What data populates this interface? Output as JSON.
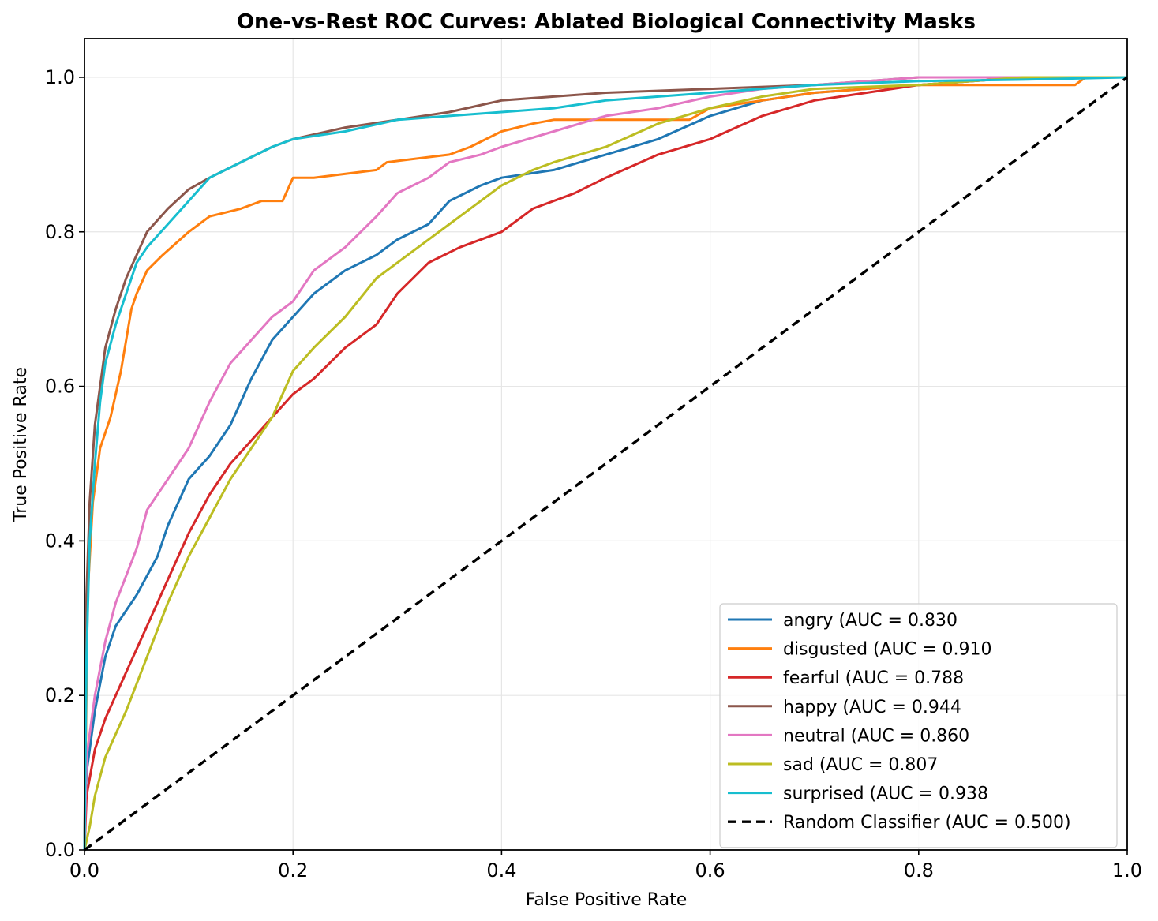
{
  "chart_data": {
    "type": "line",
    "title": "One-vs-Rest ROC Curves: Ablated Biological Connectivity Masks",
    "xlabel": "False Positive Rate",
    "ylabel": "True Positive Rate",
    "xlim": [
      0.0,
      1.0
    ],
    "ylim": [
      0.0,
      1.05
    ],
    "xticks": [
      "0.0",
      "0.2",
      "0.4",
      "0.6",
      "0.8",
      "1.0"
    ],
    "yticks": [
      "0.0",
      "0.2",
      "0.4",
      "0.6",
      "0.8",
      "1.0"
    ],
    "grid": true,
    "legend_position": "lower-right",
    "series": [
      {
        "name": "angry (AUC = 0.830",
        "color": "#1f77b4",
        "points": [
          [
            0,
            0
          ],
          [
            0.002,
            0.1
          ],
          [
            0.01,
            0.18
          ],
          [
            0.02,
            0.25
          ],
          [
            0.03,
            0.29
          ],
          [
            0.05,
            0.33
          ],
          [
            0.07,
            0.38
          ],
          [
            0.08,
            0.42
          ],
          [
            0.1,
            0.48
          ],
          [
            0.12,
            0.51
          ],
          [
            0.14,
            0.55
          ],
          [
            0.16,
            0.61
          ],
          [
            0.18,
            0.66
          ],
          [
            0.2,
            0.69
          ],
          [
            0.22,
            0.72
          ],
          [
            0.25,
            0.75
          ],
          [
            0.28,
            0.77
          ],
          [
            0.3,
            0.79
          ],
          [
            0.33,
            0.81
          ],
          [
            0.35,
            0.84
          ],
          [
            0.38,
            0.86
          ],
          [
            0.4,
            0.87
          ],
          [
            0.45,
            0.88
          ],
          [
            0.5,
            0.9
          ],
          [
            0.55,
            0.92
          ],
          [
            0.6,
            0.95
          ],
          [
            0.65,
            0.97
          ],
          [
            0.7,
            0.98
          ],
          [
            0.8,
            0.99
          ],
          [
            0.9,
            1.0
          ],
          [
            1.0,
            1.0
          ]
        ]
      },
      {
        "name": "disgusted (AUC = 0.910",
        "color": "#ff7f0e",
        "points": [
          [
            0,
            0
          ],
          [
            0.003,
            0.33
          ],
          [
            0.008,
            0.45
          ],
          [
            0.015,
            0.52
          ],
          [
            0.025,
            0.56
          ],
          [
            0.035,
            0.62
          ],
          [
            0.045,
            0.7
          ],
          [
            0.05,
            0.72
          ],
          [
            0.06,
            0.75
          ],
          [
            0.075,
            0.77
          ],
          [
            0.1,
            0.8
          ],
          [
            0.12,
            0.82
          ],
          [
            0.15,
            0.83
          ],
          [
            0.17,
            0.84
          ],
          [
            0.19,
            0.84
          ],
          [
            0.2,
            0.87
          ],
          [
            0.22,
            0.87
          ],
          [
            0.28,
            0.88
          ],
          [
            0.29,
            0.89
          ],
          [
            0.35,
            0.9
          ],
          [
            0.37,
            0.91
          ],
          [
            0.4,
            0.93
          ],
          [
            0.43,
            0.94
          ],
          [
            0.45,
            0.945
          ],
          [
            0.58,
            0.945
          ],
          [
            0.6,
            0.96
          ],
          [
            0.65,
            0.97
          ],
          [
            0.7,
            0.98
          ],
          [
            0.8,
            0.99
          ],
          [
            0.95,
            0.99
          ],
          [
            0.96,
            1.0
          ],
          [
            1.0,
            1.0
          ]
        ]
      },
      {
        "name": "fearful (AUC = 0.788",
        "color": "#d62728",
        "points": [
          [
            0,
            0
          ],
          [
            0.002,
            0.07
          ],
          [
            0.01,
            0.13
          ],
          [
            0.02,
            0.17
          ],
          [
            0.04,
            0.23
          ],
          [
            0.06,
            0.29
          ],
          [
            0.08,
            0.35
          ],
          [
            0.1,
            0.41
          ],
          [
            0.12,
            0.46
          ],
          [
            0.14,
            0.5
          ],
          [
            0.16,
            0.53
          ],
          [
            0.18,
            0.56
          ],
          [
            0.2,
            0.59
          ],
          [
            0.22,
            0.61
          ],
          [
            0.25,
            0.65
          ],
          [
            0.28,
            0.68
          ],
          [
            0.3,
            0.72
          ],
          [
            0.33,
            0.76
          ],
          [
            0.36,
            0.78
          ],
          [
            0.4,
            0.8
          ],
          [
            0.43,
            0.83
          ],
          [
            0.47,
            0.85
          ],
          [
            0.5,
            0.87
          ],
          [
            0.55,
            0.9
          ],
          [
            0.6,
            0.92
          ],
          [
            0.65,
            0.95
          ],
          [
            0.7,
            0.97
          ],
          [
            0.75,
            0.98
          ],
          [
            0.8,
            0.99
          ],
          [
            0.9,
            1.0
          ],
          [
            1.0,
            1.0
          ]
        ]
      },
      {
        "name": "happy (AUC = 0.944",
        "color": "#8c564b",
        "points": [
          [
            0,
            0
          ],
          [
            0.002,
            0.33
          ],
          [
            0.005,
            0.45
          ],
          [
            0.01,
            0.55
          ],
          [
            0.015,
            0.6
          ],
          [
            0.02,
            0.65
          ],
          [
            0.03,
            0.7
          ],
          [
            0.04,
            0.74
          ],
          [
            0.05,
            0.77
          ],
          [
            0.06,
            0.8
          ],
          [
            0.08,
            0.83
          ],
          [
            0.1,
            0.855
          ],
          [
            0.12,
            0.87
          ],
          [
            0.15,
            0.89
          ],
          [
            0.18,
            0.91
          ],
          [
            0.2,
            0.92
          ],
          [
            0.25,
            0.935
          ],
          [
            0.3,
            0.945
          ],
          [
            0.35,
            0.955
          ],
          [
            0.4,
            0.97
          ],
          [
            0.45,
            0.975
          ],
          [
            0.5,
            0.98
          ],
          [
            0.6,
            0.985
          ],
          [
            0.7,
            0.99
          ],
          [
            0.8,
            1.0
          ],
          [
            1.0,
            1.0
          ]
        ]
      },
      {
        "name": "neutral (AUC = 0.860",
        "color": "#e377c2",
        "points": [
          [
            0,
            0
          ],
          [
            0.002,
            0.12
          ],
          [
            0.01,
            0.2
          ],
          [
            0.02,
            0.27
          ],
          [
            0.03,
            0.32
          ],
          [
            0.05,
            0.39
          ],
          [
            0.06,
            0.44
          ],
          [
            0.08,
            0.48
          ],
          [
            0.1,
            0.52
          ],
          [
            0.12,
            0.58
          ],
          [
            0.14,
            0.63
          ],
          [
            0.16,
            0.66
          ],
          [
            0.18,
            0.69
          ],
          [
            0.2,
            0.71
          ],
          [
            0.22,
            0.75
          ],
          [
            0.25,
            0.78
          ],
          [
            0.28,
            0.82
          ],
          [
            0.3,
            0.85
          ],
          [
            0.33,
            0.87
          ],
          [
            0.35,
            0.89
          ],
          [
            0.38,
            0.9
          ],
          [
            0.4,
            0.91
          ],
          [
            0.45,
            0.93
          ],
          [
            0.5,
            0.95
          ],
          [
            0.55,
            0.96
          ],
          [
            0.6,
            0.975
          ],
          [
            0.65,
            0.985
          ],
          [
            0.7,
            0.99
          ],
          [
            0.8,
            1.0
          ],
          [
            1.0,
            1.0
          ]
        ]
      },
      {
        "name": "sad (AUC = 0.807",
        "color": "#bcbd22",
        "points": [
          [
            0,
            0
          ],
          [
            0.005,
            0.03
          ],
          [
            0.01,
            0.07
          ],
          [
            0.02,
            0.12
          ],
          [
            0.04,
            0.18
          ],
          [
            0.06,
            0.25
          ],
          [
            0.08,
            0.32
          ],
          [
            0.1,
            0.38
          ],
          [
            0.12,
            0.43
          ],
          [
            0.14,
            0.48
          ],
          [
            0.16,
            0.52
          ],
          [
            0.18,
            0.56
          ],
          [
            0.2,
            0.62
          ],
          [
            0.22,
            0.65
          ],
          [
            0.25,
            0.69
          ],
          [
            0.28,
            0.74
          ],
          [
            0.3,
            0.76
          ],
          [
            0.33,
            0.79
          ],
          [
            0.35,
            0.81
          ],
          [
            0.38,
            0.84
          ],
          [
            0.4,
            0.86
          ],
          [
            0.43,
            0.88
          ],
          [
            0.45,
            0.89
          ],
          [
            0.5,
            0.91
          ],
          [
            0.55,
            0.94
          ],
          [
            0.6,
            0.96
          ],
          [
            0.65,
            0.975
          ],
          [
            0.7,
            0.985
          ],
          [
            0.8,
            0.99
          ],
          [
            0.9,
            1.0
          ],
          [
            1.0,
            1.0
          ]
        ]
      },
      {
        "name": "surprised (AUC = 0.938",
        "color": "#17becf",
        "points": [
          [
            0,
            0
          ],
          [
            0.002,
            0.25
          ],
          [
            0.005,
            0.4
          ],
          [
            0.01,
            0.5
          ],
          [
            0.015,
            0.58
          ],
          [
            0.02,
            0.63
          ],
          [
            0.03,
            0.68
          ],
          [
            0.04,
            0.72
          ],
          [
            0.05,
            0.76
          ],
          [
            0.06,
            0.78
          ],
          [
            0.08,
            0.81
          ],
          [
            0.1,
            0.84
          ],
          [
            0.12,
            0.87
          ],
          [
            0.15,
            0.89
          ],
          [
            0.18,
            0.91
          ],
          [
            0.2,
            0.92
          ],
          [
            0.25,
            0.93
          ],
          [
            0.3,
            0.945
          ],
          [
            0.35,
            0.95
          ],
          [
            0.4,
            0.955
          ],
          [
            0.45,
            0.96
          ],
          [
            0.5,
            0.97
          ],
          [
            0.6,
            0.98
          ],
          [
            0.7,
            0.99
          ],
          [
            0.8,
            0.995
          ],
          [
            0.9,
            0.997
          ],
          [
            1.0,
            1.0
          ]
        ]
      },
      {
        "name": "Random Classifier (AUC = 0.500)",
        "color": "#000000",
        "dashed": true,
        "points": [
          [
            0,
            0
          ],
          [
            1,
            1
          ]
        ]
      }
    ]
  }
}
